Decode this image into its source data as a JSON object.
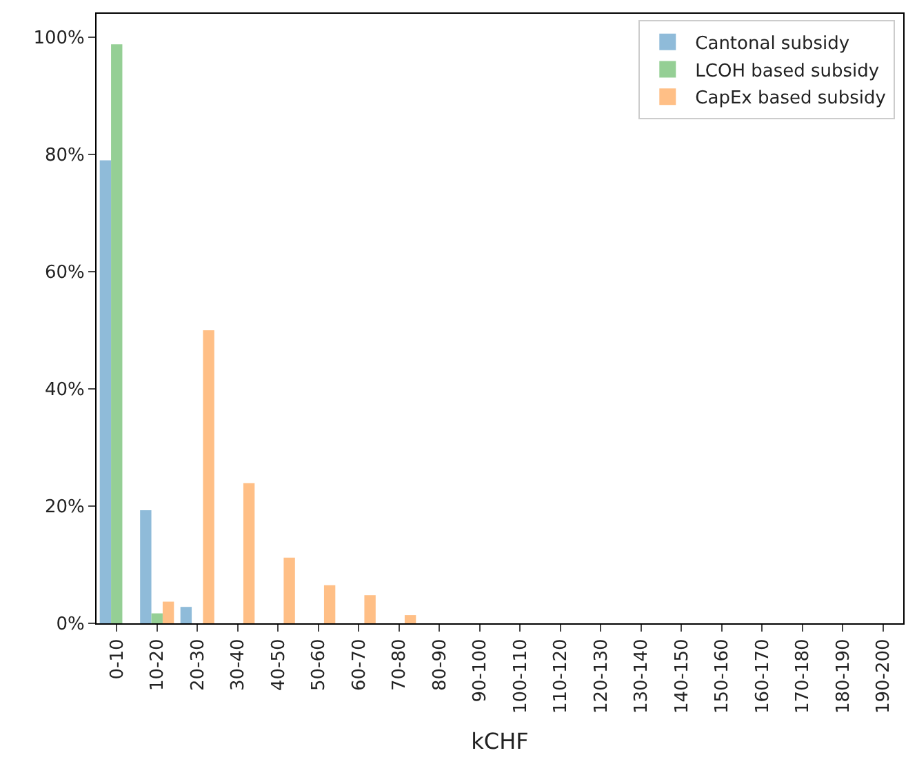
{
  "chart_data": {
    "type": "bar",
    "xlabel": "kCHF",
    "categories": [
      "0-10",
      "10-20",
      "20-30",
      "30-40",
      "40-50",
      "50-60",
      "60-70",
      "70-80",
      "80-90",
      "90-100",
      "100-110",
      "110-120",
      "120-130",
      "130-140",
      "140-150",
      "150-160",
      "160-170",
      "170-180",
      "180-190",
      "190-200"
    ],
    "series": [
      {
        "name": "Cantonal subsidy",
        "color": "#8fbbd9",
        "values": [
          79,
          19.3,
          2.8,
          0,
          0,
          0,
          0,
          0,
          0,
          0,
          0,
          0,
          0,
          0,
          0,
          0,
          0,
          0,
          0,
          0
        ]
      },
      {
        "name": "LCOH based subsidy",
        "color": "#95cf95",
        "values": [
          98.8,
          1.7,
          0,
          0,
          0,
          0,
          0,
          0,
          0,
          0,
          0,
          0,
          0,
          0,
          0,
          0,
          0,
          0,
          0,
          0
        ]
      },
      {
        "name": "CapEx based subsidy",
        "color": "#ffbf86",
        "values": [
          0,
          3.7,
          50,
          23.9,
          11.2,
          6.5,
          4.8,
          1.4,
          0,
          0,
          0,
          0,
          0,
          0,
          0,
          0,
          0,
          0,
          0,
          0
        ]
      }
    ],
    "ylim": [
      0,
      104
    ],
    "yticks": [
      {
        "value": 0,
        "label": "0%"
      },
      {
        "value": 20,
        "label": "20%"
      },
      {
        "value": 40,
        "label": "40%"
      },
      {
        "value": 60,
        "label": "60%"
      },
      {
        "value": 80,
        "label": "80%"
      },
      {
        "value": 100,
        "label": "100%"
      }
    ],
    "legend": "top right"
  }
}
